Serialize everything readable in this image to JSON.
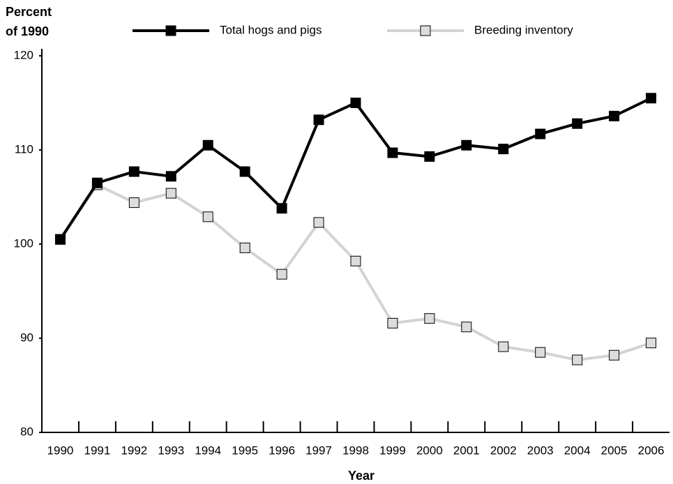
{
  "chart_data": {
    "type": "line",
    "y_label_lines": [
      "Percent",
      "of 1990"
    ],
    "x_label": "Year",
    "categories": [
      "1990",
      "1991",
      "1992",
      "1993",
      "1994",
      "1995",
      "1996",
      "1997",
      "1998",
      "1999",
      "2000",
      "2001",
      "2002",
      "2003",
      "2004",
      "2005",
      "2006"
    ],
    "series": [
      {
        "name": "Total hogs and pigs",
        "color": "#000000",
        "marker_color": "#000000",
        "values": [
          100.5,
          106.5,
          107.7,
          107.2,
          110.5,
          107.7,
          103.8,
          113.2,
          115.0,
          109.7,
          109.3,
          110.5,
          110.1,
          111.7,
          112.8,
          113.6,
          115.5
        ]
      },
      {
        "name": "Breeding inventory",
        "color": "#d3d3d3",
        "marker_color": "#dcdcdc",
        "values": [
          100.5,
          106.3,
          104.4,
          105.4,
          102.9,
          99.6,
          96.8,
          102.3,
          98.2,
          91.6,
          92.1,
          91.2,
          89.1,
          88.5,
          87.7,
          88.2,
          89.5
        ]
      }
    ],
    "ylim": [
      80,
      120
    ],
    "yticks": [
      80,
      90,
      100,
      110,
      120
    ],
    "grid": false,
    "legend": "top"
  }
}
